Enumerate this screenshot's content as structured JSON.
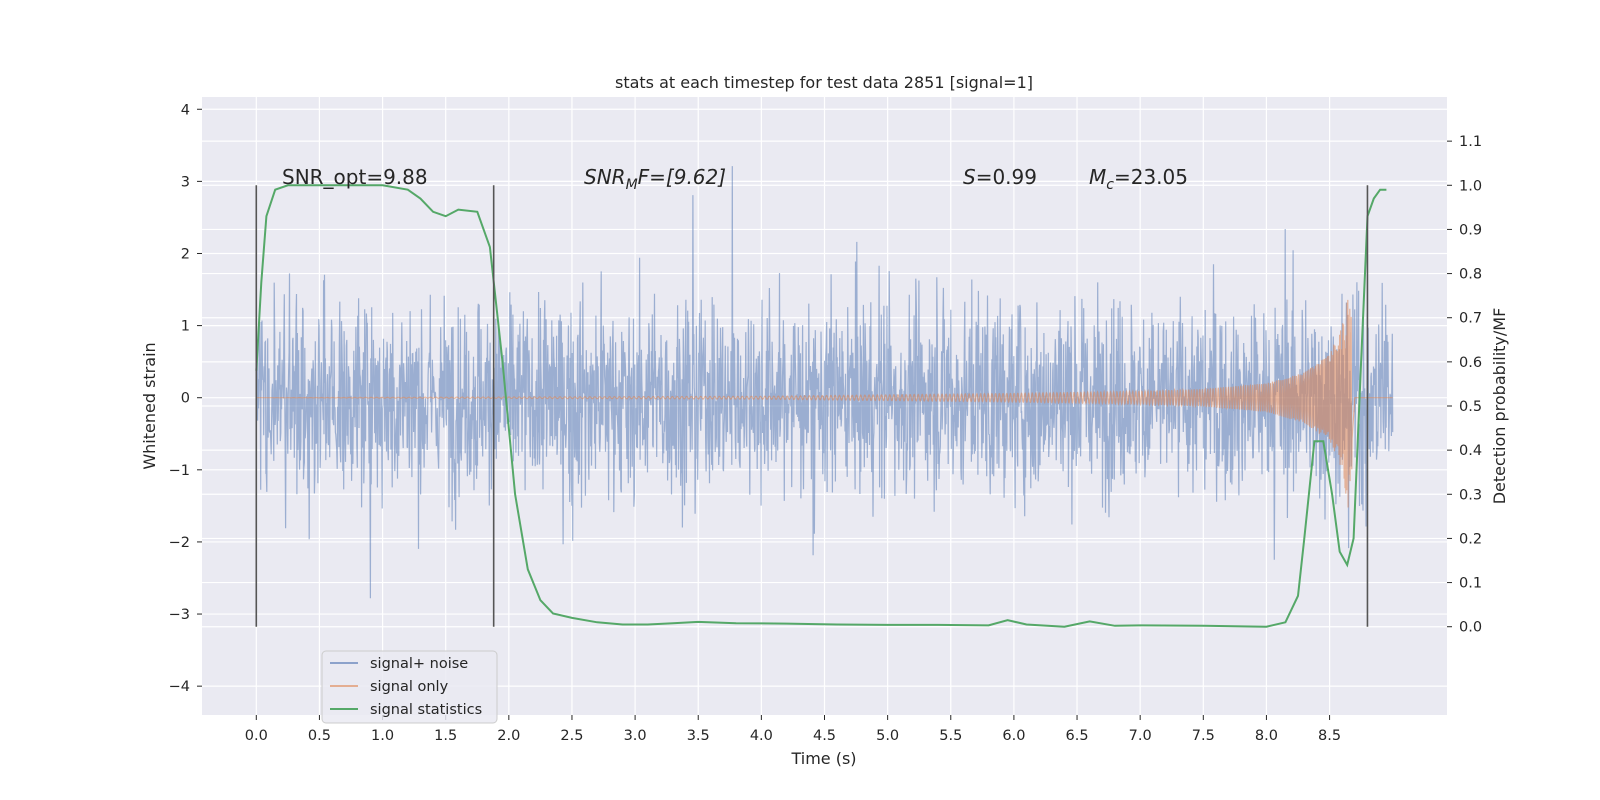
{
  "chart_data": {
    "type": "line",
    "title": "stats at each timestep for test data 2851 [signal=1]",
    "xlabel": "Time (s)",
    "ylabel_left": "Whitened strain",
    "ylabel_right": "Detection probability/MF",
    "xlim": [
      -0.43,
      9.43
    ],
    "ylim_left": [
      -4.4,
      4.17
    ],
    "ylim_right": [
      -0.2,
      1.2
    ],
    "x_ticks": [
      "0.0",
      "0.5",
      "1.0",
      "1.5",
      "2.0",
      "2.5",
      "3.0",
      "3.5",
      "4.0",
      "4.5",
      "5.0",
      "5.5",
      "6.0",
      "6.5",
      "7.0",
      "7.5",
      "8.0",
      "8.5"
    ],
    "y_ticks_left": [
      "4",
      "3",
      "2",
      "1",
      "0",
      "−1",
      "−2",
      "−3",
      "−4"
    ],
    "y_ticks_right": [
      "1.1",
      "1.0",
      "0.9",
      "0.8",
      "0.7",
      "0.6",
      "0.5",
      "0.4",
      "0.3",
      "0.2",
      "0.1",
      "0.0"
    ],
    "grid": true,
    "legend_position": "lower-left",
    "annotations": {
      "snr_opt": "SNR_opt=9.88",
      "snr_mf": "SNR",
      "snr_mf_sub": "M",
      "snr_mf_rest": "F=[9.62]",
      "s_italic": "S",
      "s_rest": "=0.99",
      "mc_italic": "M",
      "mc_sub": "c",
      "mc_rest": "=23.05"
    },
    "vertical_lines_x": [
      0.0,
      1.88,
      8.8
    ],
    "series": [
      {
        "name": "signal+ noise",
        "color": "#4c72b0",
        "description_range": "noise band approx ±1.8, peaks to ±3.6",
        "x_range": [
          0.0,
          9.0
        ]
      },
      {
        "name": "signal only",
        "color": "#dd8452",
        "x": [
          0,
          4.0,
          5.0,
          6.0,
          7.0,
          7.5,
          8.0,
          8.3,
          8.5,
          8.6,
          8.66,
          8.7,
          9.0
        ],
        "amplitude": [
          0.0,
          0.02,
          0.04,
          0.06,
          0.09,
          0.12,
          0.2,
          0.35,
          0.6,
          1.0,
          1.7,
          0.0,
          0.0
        ]
      },
      {
        "name": "signal statistics",
        "color": "#55a868",
        "x": [
          0.0,
          0.04,
          0.08,
          0.15,
          0.25,
          0.5,
          1.0,
          1.2,
          1.3,
          1.4,
          1.5,
          1.6,
          1.75,
          1.85,
          1.95,
          2.05,
          2.15,
          2.25,
          2.35,
          2.5,
          2.7,
          2.9,
          3.1,
          3.3,
          3.5,
          3.8,
          4.2,
          4.6,
          5.0,
          5.4,
          5.8,
          5.95,
          6.1,
          6.4,
          6.6,
          6.8,
          7.0,
          7.5,
          8.0,
          8.15,
          8.25,
          8.3,
          8.38,
          8.45,
          8.52,
          8.58,
          8.64,
          8.69,
          8.75,
          8.8,
          8.85,
          8.9,
          8.95
        ],
        "y": [
          0.58,
          0.78,
          0.93,
          0.99,
          1.0,
          1.0,
          1.0,
          0.99,
          0.97,
          0.94,
          0.93,
          0.945,
          0.94,
          0.86,
          0.6,
          0.3,
          0.13,
          0.06,
          0.03,
          0.02,
          0.01,
          0.005,
          0.005,
          0.008,
          0.011,
          0.008,
          0.007,
          0.005,
          0.004,
          0.004,
          0.003,
          0.015,
          0.005,
          0.0,
          0.012,
          0.002,
          0.003,
          0.002,
          0.0,
          0.01,
          0.07,
          0.2,
          0.42,
          0.42,
          0.3,
          0.17,
          0.14,
          0.2,
          0.6,
          0.93,
          0.97,
          0.99,
          0.99
        ]
      }
    ]
  }
}
